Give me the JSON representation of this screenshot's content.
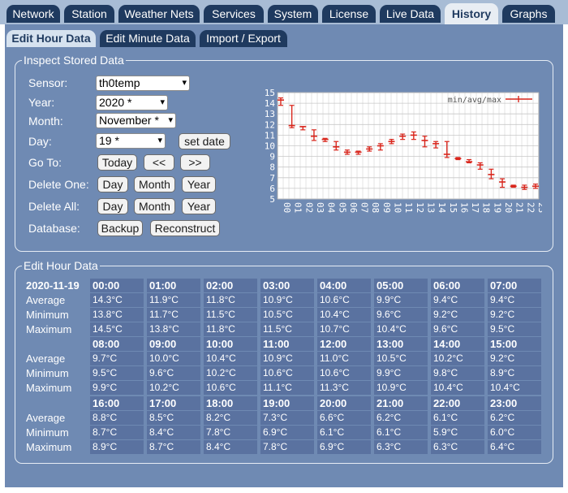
{
  "top_tabs": [
    "Network",
    "Station",
    "Weather Nets",
    "Services",
    "System",
    "License",
    "Live Data",
    "History",
    "Graphs"
  ],
  "active_top_tab": "History",
  "sub_tabs": [
    "Edit Hour Data",
    "Edit Minute Data",
    "Import / Export"
  ],
  "active_sub_tab": "Edit Hour Data",
  "inspect": {
    "legend": "Inspect Stored Data",
    "sensor_label": "Sensor:",
    "sensor_value": "th0temp",
    "year_label": "Year:",
    "year_value": "2020 *",
    "month_label": "Month:",
    "month_value": "November *",
    "day_label": "Day:",
    "day_value": "19 *",
    "set_date": "set date",
    "goto_label": "Go To:",
    "today": "Today",
    "prev": "<<",
    "next": ">>",
    "delete_one_label": "Delete One:",
    "delete_all_label": "Delete All:",
    "day_btn": "Day",
    "month_btn": "Month",
    "year_btn": "Year",
    "database_label": "Database:",
    "backup": "Backup",
    "reconstruct": "Reconstruct"
  },
  "chart_data": {
    "type": "line",
    "legend": "min/avg/max",
    "categories": [
      "00",
      "01",
      "02",
      "03",
      "04",
      "05",
      "06",
      "07",
      "08",
      "09",
      "10",
      "11",
      "12",
      "13",
      "14",
      "15",
      "16",
      "17",
      "18",
      "19",
      "20",
      "21",
      "22",
      "23"
    ],
    "series": [
      {
        "name": "avg",
        "values": [
          14.3,
          11.9,
          11.8,
          10.9,
          10.6,
          9.9,
          9.4,
          9.4,
          9.7,
          10.0,
          10.4,
          10.9,
          11.0,
          10.5,
          10.2,
          9.2,
          8.8,
          8.5,
          8.2,
          7.3,
          6.6,
          6.2,
          6.1,
          6.2
        ]
      },
      {
        "name": "min",
        "values": [
          13.8,
          11.7,
          11.5,
          10.5,
          10.4,
          9.6,
          9.2,
          9.2,
          9.5,
          9.6,
          10.2,
          10.6,
          10.6,
          9.9,
          9.8,
          8.9,
          8.7,
          8.4,
          7.8,
          6.9,
          6.1,
          6.1,
          5.9,
          6.0
        ]
      },
      {
        "name": "max",
        "values": [
          14.5,
          13.8,
          11.8,
          11.5,
          10.7,
          10.4,
          9.6,
          9.5,
          9.9,
          10.2,
          10.6,
          11.1,
          11.3,
          10.9,
          10.4,
          10.4,
          8.9,
          8.7,
          8.4,
          7.8,
          6.9,
          6.3,
          6.3,
          6.4
        ]
      }
    ],
    "ylim": [
      5,
      15
    ],
    "yticks": [
      5,
      6,
      7,
      8,
      9,
      10,
      11,
      12,
      13,
      14,
      15
    ],
    "grid": true,
    "legend_position": "top-right",
    "colors": {
      "series": "#d9261c",
      "background": "#ffffff",
      "grid": "#c8c8c8"
    }
  },
  "edit": {
    "legend": "Edit Hour Data",
    "date": "2020-11-19",
    "row_labels": [
      "Average",
      "Minimum",
      "Maximum"
    ],
    "blocks": [
      {
        "hours": [
          "00:00",
          "01:00",
          "02:00",
          "03:00",
          "04:00",
          "05:00",
          "06:00",
          "07:00"
        ],
        "avg": [
          "14.3°C",
          "11.9°C",
          "11.8°C",
          "10.9°C",
          "10.6°C",
          "9.9°C",
          "9.4°C",
          "9.4°C"
        ],
        "min": [
          "13.8°C",
          "11.7°C",
          "11.5°C",
          "10.5°C",
          "10.4°C",
          "9.6°C",
          "9.2°C",
          "9.2°C"
        ],
        "max": [
          "14.5°C",
          "13.8°C",
          "11.8°C",
          "11.5°C",
          "10.7°C",
          "10.4°C",
          "9.6°C",
          "9.5°C"
        ]
      },
      {
        "hours": [
          "08:00",
          "09:00",
          "10:00",
          "11:00",
          "12:00",
          "13:00",
          "14:00",
          "15:00"
        ],
        "avg": [
          "9.7°C",
          "10.0°C",
          "10.4°C",
          "10.9°C",
          "11.0°C",
          "10.5°C",
          "10.2°C",
          "9.2°C"
        ],
        "min": [
          "9.5°C",
          "9.6°C",
          "10.2°C",
          "10.6°C",
          "10.6°C",
          "9.9°C",
          "9.8°C",
          "8.9°C"
        ],
        "max": [
          "9.9°C",
          "10.2°C",
          "10.6°C",
          "11.1°C",
          "11.3°C",
          "10.9°C",
          "10.4°C",
          "10.4°C"
        ]
      },
      {
        "hours": [
          "16:00",
          "17:00",
          "18:00",
          "19:00",
          "20:00",
          "21:00",
          "22:00",
          "23:00"
        ],
        "avg": [
          "8.8°C",
          "8.5°C",
          "8.2°C",
          "7.3°C",
          "6.6°C",
          "6.2°C",
          "6.1°C",
          "6.2°C"
        ],
        "min": [
          "8.7°C",
          "8.4°C",
          "7.8°C",
          "6.9°C",
          "6.1°C",
          "6.1°C",
          "5.9°C",
          "6.0°C"
        ],
        "max": [
          "8.9°C",
          "8.7°C",
          "8.4°C",
          "7.8°C",
          "6.9°C",
          "6.3°C",
          "6.3°C",
          "6.4°C"
        ]
      }
    ]
  }
}
